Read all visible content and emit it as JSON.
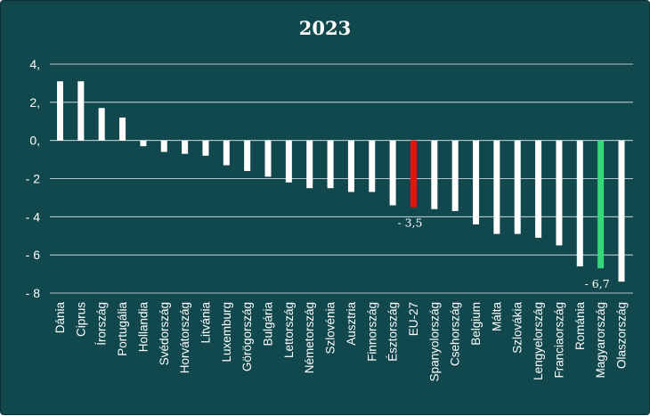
{
  "chart_data": {
    "type": "bar",
    "title": "2023",
    "xlabel": "",
    "ylabel": "",
    "ylim": [
      -8,
      4
    ],
    "grid": true,
    "yticks": [
      {
        "value": 4,
        "label": "4,"
      },
      {
        "value": 2,
        "label": "2,"
      },
      {
        "value": 0,
        "label": "0,"
      },
      {
        "value": -2,
        "label": "- 2"
      },
      {
        "value": -4,
        "label": "- 4"
      },
      {
        "value": -6,
        "label": "- 6"
      },
      {
        "value": -8,
        "label": "- 8"
      }
    ],
    "categories": [
      "Dánia",
      "Ciprus",
      "Írország",
      "Portugália",
      "Hollandia",
      "Svédország",
      "Horvátország",
      "Litvánia",
      "Luxemburg",
      "Görögország",
      "Bulgária",
      "Lettország",
      "Németország",
      "Szlovénia",
      "Ausztria",
      "Finnország",
      "Észtország",
      "EU-27",
      "Spanyolország",
      "Csehország",
      "Belgium",
      "Málta",
      "Szlovákia",
      "Lengyelország",
      "Franciaország",
      "Románia",
      "Magyarország",
      "Olaszország"
    ],
    "values": [
      3.1,
      3.1,
      1.7,
      1.2,
      -0.3,
      -0.6,
      -0.7,
      -0.8,
      -1.3,
      -1.6,
      -1.9,
      -2.2,
      -2.5,
      -2.5,
      -2.7,
      -2.7,
      -3.4,
      -3.5,
      -3.6,
      -3.7,
      -4.4,
      -4.9,
      -4.9,
      -5.1,
      -5.5,
      -6.6,
      -6.7,
      -7.4
    ],
    "bar_color": "#ffffff",
    "highlights": [
      {
        "category": "EU-27",
        "color": "#e0150f"
      },
      {
        "category": "Magyarország",
        "color": "#36d97a"
      }
    ],
    "data_labels": [
      {
        "category": "EU-27",
        "label": "- 3,5"
      },
      {
        "category": "Magyarország",
        "label": "- 6,7"
      }
    ]
  },
  "colors": {
    "background": "#11484d",
    "grid": "#ffffff",
    "text": "#ffffff"
  }
}
